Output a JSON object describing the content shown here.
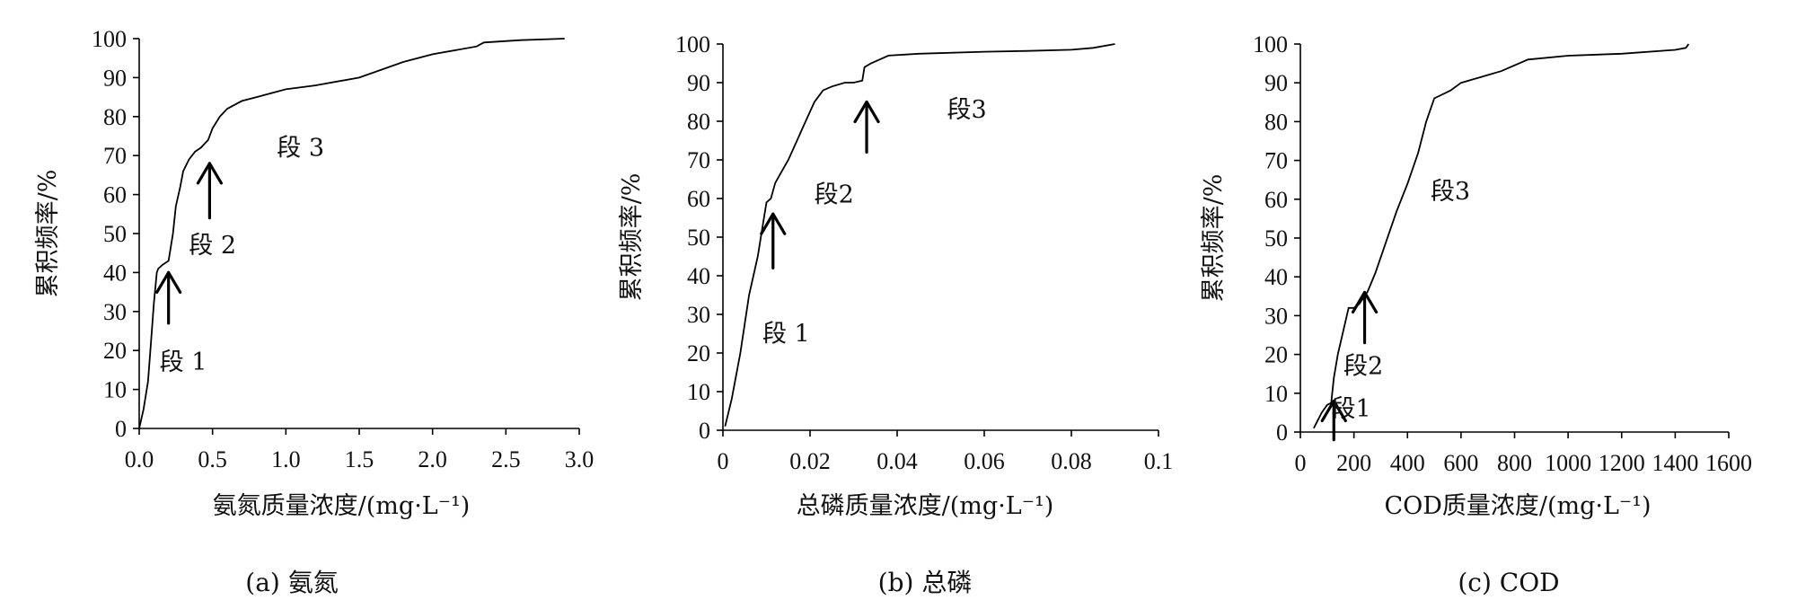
{
  "chart_data": [
    {
      "type": "line",
      "caption": "(a) 氨氮",
      "xlabel": "氨氮质量浓度/(mg·L⁻¹)",
      "ylabel": "累积频率/%",
      "xlim": [
        0,
        3.0
      ],
      "ylim": [
        0,
        100
      ],
      "xticks": [
        "0.0",
        "0.5",
        "1.0",
        "1.5",
        "2.0",
        "2.5",
        "3.0"
      ],
      "yticks": [
        "0",
        "10",
        "20",
        "30",
        "40",
        "50",
        "60",
        "70",
        "80",
        "90",
        "100"
      ],
      "series": [
        {
          "x": [
            0.0,
            0.03,
            0.06,
            0.08,
            0.1,
            0.12,
            0.13,
            0.16,
            0.2,
            0.23,
            0.25,
            0.28,
            0.3,
            0.34,
            0.38,
            0.42,
            0.47,
            0.5,
            0.55,
            0.6,
            0.7,
            0.8,
            0.9,
            1.0,
            1.2,
            1.5,
            1.8,
            2.0,
            2.3,
            2.35,
            2.6,
            2.9
          ],
          "y": [
            0,
            5,
            12,
            22,
            32,
            40,
            41,
            42,
            43,
            50,
            57,
            62,
            66,
            69,
            71,
            72,
            74,
            77,
            80,
            82,
            84,
            85,
            86,
            87,
            88,
            90,
            94,
            96,
            98,
            99,
            99.6,
            100
          ]
        }
      ],
      "annotations": [
        {
          "text": "段 1",
          "x": 0.3,
          "y": 17
        },
        {
          "text": "段 2",
          "x": 0.5,
          "y": 47
        },
        {
          "text": "段 3",
          "x": 1.1,
          "y": 72
        }
      ],
      "arrows": [
        {
          "x": 0.2,
          "y_from": 27,
          "y_to": 40
        },
        {
          "x": 0.48,
          "y_from": 54,
          "y_to": 68
        }
      ]
    },
    {
      "type": "line",
      "caption": "(b) 总磷",
      "xlabel": "总磷质量浓度/(mg·L⁻¹)",
      "ylabel": "累积频率/%",
      "xlim": [
        0,
        0.1
      ],
      "ylim": [
        0,
        100
      ],
      "xticks": [
        "0",
        "0.02",
        "0.04",
        "0.06",
        "0.08",
        "0.1"
      ],
      "yticks": [
        "0",
        "10",
        "20",
        "30",
        "40",
        "50",
        "60",
        "70",
        "80",
        "90",
        "100"
      ],
      "series": [
        {
          "x": [
            0.0005,
            0.002,
            0.004,
            0.006,
            0.008,
            0.009,
            0.01,
            0.011,
            0.012,
            0.013,
            0.015,
            0.017,
            0.019,
            0.021,
            0.023,
            0.025,
            0.028,
            0.03,
            0.032,
            0.0325,
            0.034,
            0.038,
            0.045,
            0.06,
            0.07,
            0.08,
            0.085,
            0.09
          ],
          "y": [
            1,
            8,
            20,
            35,
            45,
            52,
            59,
            60,
            64,
            66,
            70,
            75,
            80,
            85,
            88,
            89,
            90,
            90,
            90.5,
            94,
            95,
            97,
            97.5,
            98,
            98.2,
            98.5,
            99,
            100
          ]
        }
      ],
      "annotations": [
        {
          "text": "段 1",
          "x": 0.0145,
          "y": 25
        },
        {
          "text": "段2",
          "x": 0.0255,
          "y": 61
        },
        {
          "text": "段3",
          "x": 0.056,
          "y": 83
        }
      ],
      "arrows": [
        {
          "x": 0.0115,
          "y_from": 42,
          "y_to": 56
        },
        {
          "x": 0.033,
          "y_from": 72,
          "y_to": 85
        }
      ]
    },
    {
      "type": "line",
      "caption": "(c) COD",
      "xlabel": "COD质量浓度/(mg·L⁻¹)",
      "ylabel": "累积频率/%",
      "xlim": [
        0,
        1600
      ],
      "ylim": [
        0,
        100
      ],
      "xticks": [
        "0",
        "200",
        "400",
        "600",
        "800",
        "1000",
        "1200",
        "1400",
        "1600"
      ],
      "yticks": [
        "0",
        "10",
        "20",
        "30",
        "40",
        "50",
        "60",
        "70",
        "80",
        "90",
        "100"
      ],
      "series": [
        {
          "x": [
            50,
            80,
            100,
            115,
            125,
            140,
            160,
            180,
            200,
            220,
            250,
            280,
            320,
            360,
            400,
            440,
            470,
            500,
            560,
            600,
            650,
            750,
            850,
            1000,
            1200,
            1400,
            1440,
            1450
          ],
          "y": [
            1,
            5,
            7,
            7.5,
            14,
            20,
            26,
            32,
            32,
            33,
            36,
            41,
            49,
            57,
            64,
            72,
            80,
            86,
            88,
            90,
            91,
            93,
            96,
            97,
            97.5,
            98.5,
            99,
            100
          ]
        }
      ],
      "annotations": [
        {
          "text": "段1",
          "x": 190,
          "y": 6
        },
        {
          "text": "段2",
          "x": 235,
          "y": 17
        },
        {
          "text": "段3",
          "x": 560,
          "y": 62
        }
      ],
      "arrows": [
        {
          "x": 125,
          "y_from": -2,
          "y_to": 8
        },
        {
          "x": 240,
          "y_from": 23,
          "y_to": 36
        }
      ]
    }
  ]
}
